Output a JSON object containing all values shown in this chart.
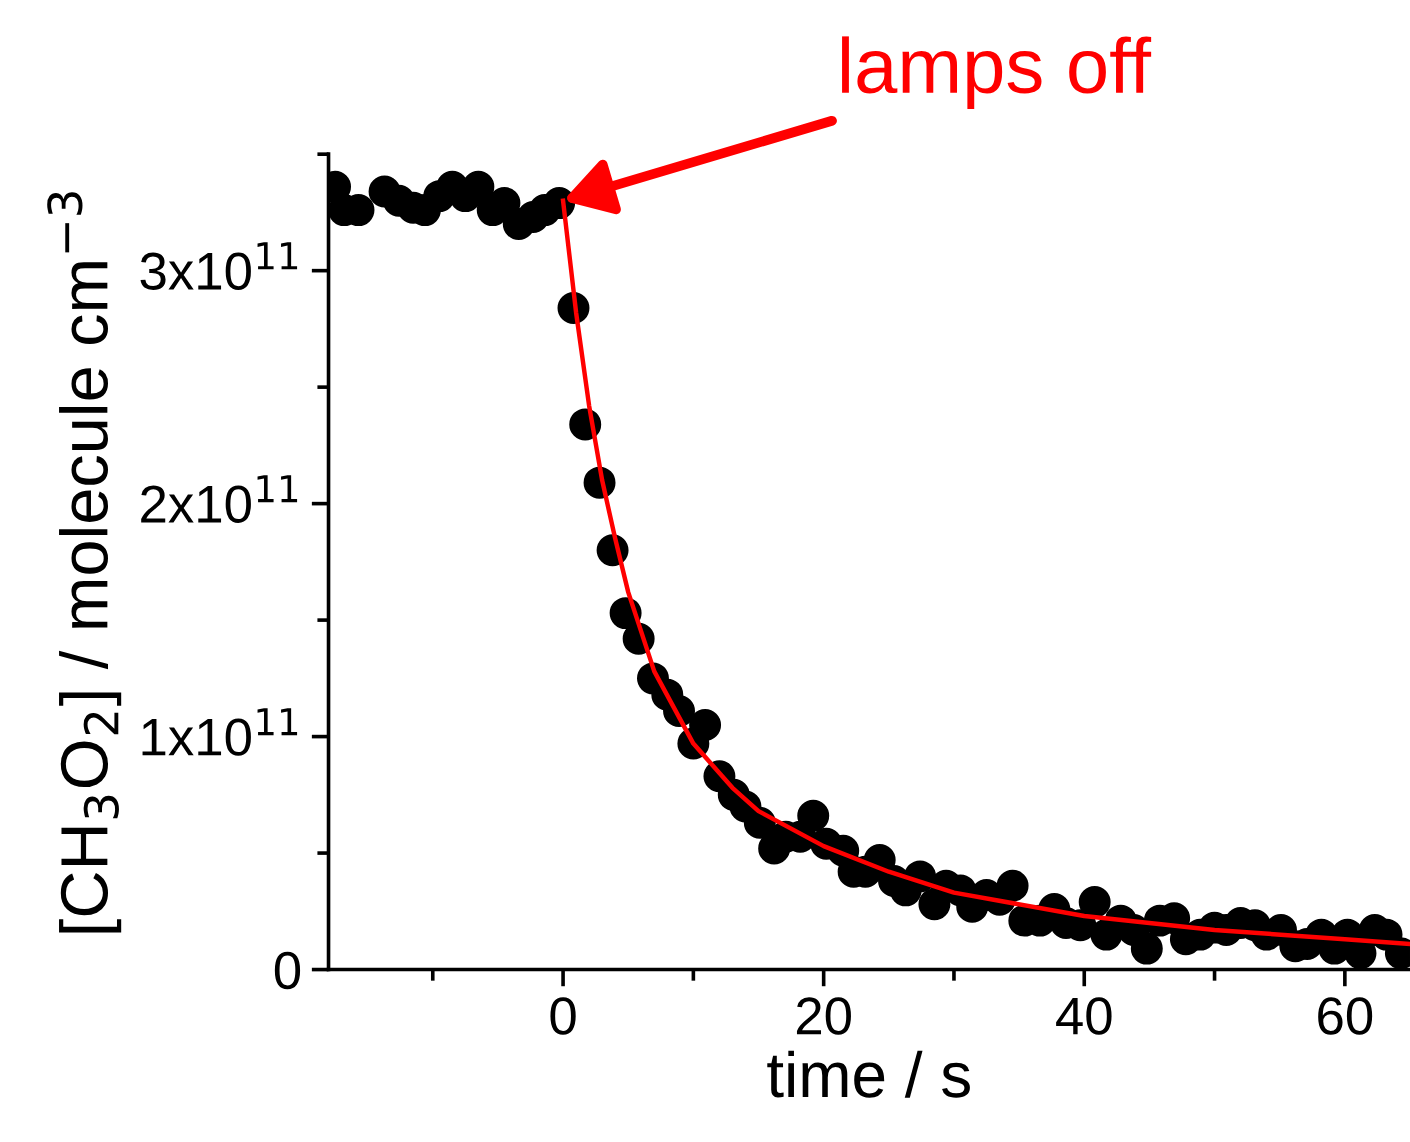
{
  "chart_data": {
    "type": "scatter",
    "xlabel": "time / s",
    "ylabel": "[CH$_{3}$O$_{2}$] / molecule cm$^{−3}$",
    "xlim": [
      -18,
      65
    ],
    "ylim": [
      0,
      350000000000.0
    ],
    "xticks": [
      {
        "value": -10,
        "label": null
      },
      0,
      {
        "value": 10,
        "label": null
      },
      20,
      {
        "value": 30,
        "label": null
      },
      40,
      {
        "value": 50,
        "label": null
      },
      60
    ],
    "yticks": [
      0,
      {
        "value": 50000000000.0,
        "label": null
      },
      {
        "value": 100000000000.0,
        "label": "1x10$^{11}$"
      },
      {
        "value": 150000000000.0,
        "label": null
      },
      {
        "value": 200000000000.0,
        "label": "2x10$^{11}$"
      },
      {
        "value": 250000000000.0,
        "label": null
      },
      {
        "value": 300000000000.0,
        "label": "3x10$^{11}$"
      },
      {
        "value": 350000000000.0,
        "label": null
      }
    ],
    "grid": false,
    "legend": false,
    "annotations": [
      {
        "text": "lamps off",
        "x": 0,
        "y": 330000000000.0
      }
    ],
    "series": [
      {
        "color": "#000000",
        "marker": "circle",
        "x": [
          -17.5,
          -16.8,
          -15.7,
          -13.7,
          -12.6,
          -11.5,
          -10.6,
          -9.5,
          -8.5,
          -7.5,
          -6.5,
          -5.4,
          -4.5,
          -3.4,
          -2.3,
          -1.4,
          -0.3,
          0.8,
          1.7,
          2.8,
          3.8,
          4.8,
          5.8,
          6.9,
          8.0,
          8.9,
          10.0,
          10.9,
          12.0,
          13.1,
          14.0,
          15.1,
          16.2,
          17.1,
          18.2,
          19.2,
          20.2,
          21.5,
          22.3,
          23.2,
          24.3,
          25.4,
          26.3,
          27.4,
          28.5,
          29.4,
          30.5,
          31.4,
          32.5,
          33.5,
          34.5,
          35.4,
          36.6,
          37.7,
          38.6,
          39.7,
          40.8,
          41.7,
          42.8,
          43.8,
          44.8,
          45.8,
          46.9,
          47.8,
          48.9,
          50.0,
          50.9,
          52.0,
          53.1,
          54.0,
          55.1,
          56.2,
          57.1,
          58.2,
          59.2,
          60.2,
          61.2,
          62.3,
          63.2,
          64.3
        ],
        "values": [
          336000000000.0,
          326000000000.0,
          326000000000.0,
          334000000000.0,
          330000000000.0,
          327000000000.0,
          326000000000.0,
          332000000000.0,
          336000000000.0,
          332000000000.0,
          336000000000.0,
          326000000000.0,
          329000000000.0,
          320000000000.0,
          323000000000.0,
          326000000000.0,
          329000000000.0,
          284000000000.0,
          234000000000.0,
          209000000000.0,
          180000000000.0,
          153000000000.0,
          142000000000.0,
          125000000000.0,
          118000000000.0,
          111000000000.0,
          97000000000.0,
          105000000000.0,
          83000000000.0,
          75000000000.0,
          70000000000.0,
          63000000000.0,
          52000000000.0,
          57000000000.0,
          57000000000.0,
          66000000000.0,
          54000000000.0,
          51000000000.0,
          42000000000.0,
          42000000000.0,
          47000000000.0,
          38000000000.0,
          34000000000.0,
          40000000000.0,
          28000000000.0,
          36000000000.0,
          34000000000.0,
          27000000000.0,
          32000000000.0,
          30000000000.0,
          36000000000.0,
          21000000000.0,
          21000000000.0,
          26000000000.0,
          20000000000.0,
          19000000000.0,
          29000000000.0,
          15000000000.0,
          21000000000.0,
          17000000000.0,
          9000000000.0,
          21000000000.0,
          22000000000.0,
          13000000000.0,
          15000000000.0,
          18000000000.0,
          17000000000.0,
          20000000000.0,
          19000000000.0,
          15000000000.0,
          17000000000.0,
          10000000000.0,
          11000000000.0,
          15000000000.0,
          9000000000.0,
          15000000000.0,
          7000000000.0,
          17000000000.0,
          15000000000.0,
          7000000000.0
        ]
      },
      {
        "type": "line",
        "color": "#ff0000",
        "marker": "none",
        "x": [
          0,
          1,
          2,
          3,
          4,
          5,
          7,
          10,
          13,
          15,
          20,
          25,
          30,
          40,
          50,
          60,
          65
        ],
        "values": [
          330000000000.0,
          282000000000.0,
          242000000000.0,
          210000000000.0,
          185000000000.0,
          162000000000.0,
          128000000000.0,
          97000000000.0,
          78000000000.0,
          68000000000.0,
          53000000000.0,
          42000000000.0,
          33000000000.0,
          23000000000.0,
          17000000000.0,
          13000000000.0,
          11000000000.0
        ]
      }
    ]
  }
}
